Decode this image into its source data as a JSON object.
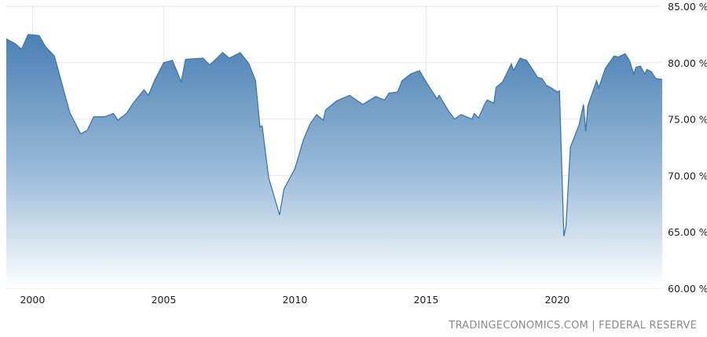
{
  "chart_data": {
    "type": "area",
    "title": "",
    "xlabel": "",
    "ylabel": "",
    "ylim": [
      60,
      85
    ],
    "xlim": [
      "1999-01",
      "2024-01"
    ],
    "y_ticks": [
      "60.00 %",
      "65.00 %",
      "70.00 %",
      "75.00 %",
      "80.00 %",
      "85.00 %"
    ],
    "y_tick_values": [
      60,
      65,
      70,
      75,
      80,
      85
    ],
    "x_ticks": [
      "2000",
      "2005",
      "2010",
      "2015",
      "2020"
    ],
    "grid": true,
    "y_axis_side": "right",
    "colors": {
      "line": "#3d77ad",
      "fill_top": "#4a80b4",
      "fill_bottom": "#ffffff",
      "grid": "#e6e6e6"
    },
    "series": [
      {
        "values": [
          [
            "1999-01",
            82.1
          ],
          [
            "1999-05",
            81.7
          ],
          [
            "1999-08",
            81.2
          ],
          [
            "1999-11",
            82.5
          ],
          [
            "2000-04",
            82.4
          ],
          [
            "2000-07",
            81.4
          ],
          [
            "2000-11",
            80.6
          ],
          [
            "2001-06",
            75.6
          ],
          [
            "2001-11",
            73.7
          ],
          [
            "2002-02",
            74.0
          ],
          [
            "2002-05",
            75.2
          ],
          [
            "2002-10",
            75.2
          ],
          [
            "2003-02",
            75.5
          ],
          [
            "2003-04",
            74.9
          ],
          [
            "2003-08",
            75.5
          ],
          [
            "2003-11",
            76.4
          ],
          [
            "2004-04",
            77.6
          ],
          [
            "2004-06",
            77.1
          ],
          [
            "2004-09",
            78.5
          ],
          [
            "2005-01",
            80.0
          ],
          [
            "2005-05",
            80.2
          ],
          [
            "2005-09",
            78.3
          ],
          [
            "2005-11",
            80.3
          ],
          [
            "2006-07",
            80.4
          ],
          [
            "2006-10",
            79.8
          ],
          [
            "2007-04",
            80.9
          ],
          [
            "2007-07",
            80.4
          ],
          [
            "2007-12",
            80.9
          ],
          [
            "2008-04",
            79.9
          ],
          [
            "2008-07",
            78.4
          ],
          [
            "2008-09",
            74.3
          ],
          [
            "2008-10",
            74.4
          ],
          [
            "2009-01",
            69.8
          ],
          [
            "2009-06",
            66.5
          ],
          [
            "2009-08",
            68.8
          ],
          [
            "2010-01",
            70.6
          ],
          [
            "2010-05",
            73.2
          ],
          [
            "2010-08",
            74.6
          ],
          [
            "2010-11",
            75.4
          ],
          [
            "2011-02",
            74.9
          ],
          [
            "2011-03",
            75.8
          ],
          [
            "2011-08",
            76.6
          ],
          [
            "2012-02",
            77.1
          ],
          [
            "2012-08",
            76.3
          ],
          [
            "2013-02",
            77.0
          ],
          [
            "2013-06",
            76.7
          ],
          [
            "2013-08",
            77.3
          ],
          [
            "2013-12",
            77.4
          ],
          [
            "2014-02",
            78.4
          ],
          [
            "2014-06",
            79.0
          ],
          [
            "2014-10",
            79.3
          ],
          [
            "2015-01",
            78.3
          ],
          [
            "2015-06",
            76.8
          ],
          [
            "2015-07",
            77.1
          ],
          [
            "2015-11",
            75.8
          ],
          [
            "2016-02",
            75.0
          ],
          [
            "2016-05",
            75.4
          ],
          [
            "2016-10",
            75.0
          ],
          [
            "2016-11",
            75.5
          ],
          [
            "2017-01",
            75.1
          ],
          [
            "2017-04",
            76.4
          ],
          [
            "2017-05",
            76.7
          ],
          [
            "2017-08",
            76.4
          ],
          [
            "2017-09",
            77.8
          ],
          [
            "2017-12",
            78.3
          ],
          [
            "2018-04",
            79.9
          ],
          [
            "2018-05",
            79.3
          ],
          [
            "2018-08",
            80.4
          ],
          [
            "2018-11",
            80.2
          ],
          [
            "2019-04",
            78.7
          ],
          [
            "2019-06",
            78.6
          ],
          [
            "2019-08",
            78.0
          ],
          [
            "2019-10",
            77.8
          ],
          [
            "2020-01",
            77.4
          ],
          [
            "2020-02",
            77.5
          ],
          [
            "2020-04",
            64.6
          ],
          [
            "2020-05",
            65.5
          ],
          [
            "2020-07",
            72.5
          ],
          [
            "2020-09",
            73.5
          ],
          [
            "2020-11",
            74.5
          ],
          [
            "2021-01",
            76.3
          ],
          [
            "2021-02",
            73.9
          ],
          [
            "2021-03",
            76.2
          ],
          [
            "2021-07",
            78.4
          ],
          [
            "2021-08",
            77.8
          ],
          [
            "2021-11",
            79.5
          ],
          [
            "2022-03",
            80.6
          ],
          [
            "2022-05",
            80.5
          ],
          [
            "2022-08",
            80.8
          ],
          [
            "2022-10",
            80.2
          ],
          [
            "2022-12",
            79.0
          ],
          [
            "2023-01",
            79.6
          ],
          [
            "2023-03",
            79.7
          ],
          [
            "2023-05",
            79.0
          ],
          [
            "2023-06",
            79.4
          ],
          [
            "2023-08",
            79.2
          ],
          [
            "2023-10",
            78.6
          ],
          [
            "2024-01",
            78.5
          ]
        ]
      }
    ]
  },
  "source": "TRADINGECONOMICS.COM  |  FEDERAL RESERVE"
}
